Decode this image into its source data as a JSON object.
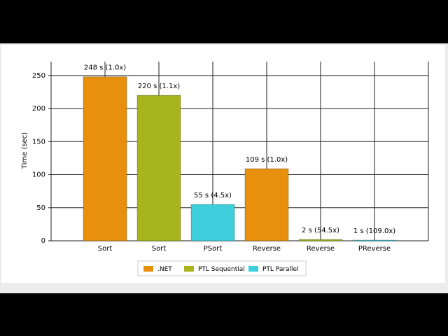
{
  "chart_data": {
    "type": "bar",
    "y_label": "Time (sec)",
    "categories": [
      "Sort",
      "Sort",
      "PSort",
      "Reverse",
      "Reverse",
      "PReverse"
    ],
    "series": [
      {
        "name": ".NET",
        "color": "#e8900c",
        "values": [
          248,
          null,
          null,
          109,
          null,
          null
        ],
        "value_labels": [
          "248 s (1.0x)",
          null,
          null,
          "109 s (1.0x)",
          null,
          null
        ]
      },
      {
        "name": "PTL Sequential",
        "color": "#a8b41e",
        "values": [
          null,
          220,
          null,
          null,
          2,
          null
        ],
        "value_labels": [
          null,
          "220 s (1.1x)",
          null,
          null,
          "2 s (54.5x)",
          null
        ]
      },
      {
        "name": "PTL Parallel",
        "color": "#3dcfdc",
        "values": [
          null,
          null,
          55,
          null,
          null,
          1
        ],
        "value_labels": [
          null,
          null,
          "55 s (4.5x)",
          null,
          null,
          "1 s (109.0x)"
        ]
      }
    ],
    "ylim": [
      0,
      271
    ],
    "yticks": [
      0,
      50,
      100,
      150,
      200,
      250
    ],
    "grid": true
  }
}
